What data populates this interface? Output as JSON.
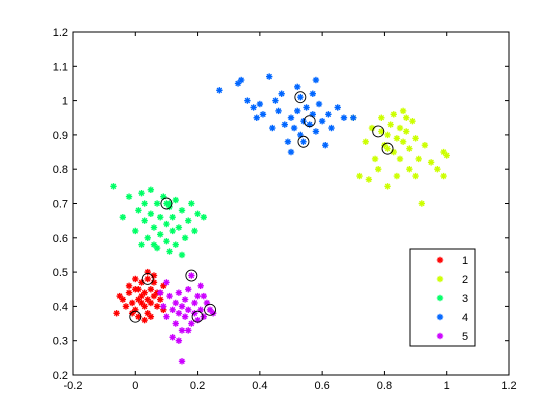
{
  "chart_data": {
    "type": "scatter",
    "title": "",
    "xlabel": "",
    "ylabel": "",
    "xlim": [
      -0.2,
      1.2
    ],
    "ylim": [
      0.2,
      1.2
    ],
    "xticks": [
      -0.2,
      0,
      0.2,
      0.4,
      0.6,
      0.8,
      1,
      1.2
    ],
    "xtick_labels": [
      "-0.2",
      "0",
      "0.2",
      "0.4",
      "0.6",
      "0.8",
      "1",
      "1.2"
    ],
    "yticks": [
      0.2,
      0.3,
      0.4,
      0.5,
      0.6,
      0.7,
      0.8,
      0.9,
      1,
      1.1,
      1.2
    ],
    "ytick_labels": [
      "0.2",
      "0.3",
      "0.4",
      "0.5",
      "0.6",
      "0.7",
      "0.8",
      "0.9",
      "1",
      "1.1",
      "1.2"
    ],
    "grid": false,
    "legend": {
      "placement": "bottom-right",
      "marker": "asterisk"
    },
    "series": [
      {
        "name": "1",
        "color": "#ff0000",
        "points": [
          [
            -0.06,
            0.38
          ],
          [
            -0.04,
            0.42
          ],
          [
            -0.03,
            0.4
          ],
          [
            -0.02,
            0.44
          ],
          [
            -0.01,
            0.41
          ],
          [
            0.0,
            0.39
          ],
          [
            0.0,
            0.45
          ],
          [
            0.01,
            0.42
          ],
          [
            0.01,
            0.37
          ],
          [
            0.02,
            0.43
          ],
          [
            0.02,
            0.47
          ],
          [
            0.03,
            0.4
          ],
          [
            0.03,
            0.44
          ],
          [
            0.04,
            0.42
          ],
          [
            0.04,
            0.38
          ],
          [
            0.05,
            0.45
          ],
          [
            0.05,
            0.41
          ],
          [
            0.06,
            0.43
          ],
          [
            0.06,
            0.47
          ],
          [
            0.07,
            0.4
          ],
          [
            0.07,
            0.44
          ],
          [
            0.08,
            0.42
          ],
          [
            0.09,
            0.46
          ],
          [
            -0.02,
            0.46
          ],
          [
            0.0,
            0.48
          ],
          [
            0.04,
            0.5
          ],
          [
            -0.05,
            0.43
          ],
          [
            0.09,
            0.39
          ],
          [
            0.03,
            0.36
          ],
          [
            0.06,
            0.49
          ],
          [
            0.01,
            0.45
          ],
          [
            0.08,
            0.44
          ],
          [
            -0.01,
            0.38
          ],
          [
            0.05,
            0.37
          ],
          [
            0.02,
            0.41
          ],
          [
            0.04,
            0.48
          ]
        ]
      },
      {
        "name": "2",
        "color": "#ccff00",
        "points": [
          [
            0.7,
            0.95
          ],
          [
            0.72,
            0.78
          ],
          [
            0.74,
            0.88
          ],
          [
            0.75,
            0.77
          ],
          [
            0.76,
            0.92
          ],
          [
            0.77,
            0.83
          ],
          [
            0.78,
            0.8
          ],
          [
            0.79,
            0.95
          ],
          [
            0.8,
            0.87
          ],
          [
            0.81,
            0.75
          ],
          [
            0.81,
            0.9
          ],
          [
            0.82,
            0.93
          ],
          [
            0.83,
            0.85
          ],
          [
            0.84,
            0.89
          ],
          [
            0.84,
            0.78
          ],
          [
            0.85,
            0.92
          ],
          [
            0.85,
            0.83
          ],
          [
            0.86,
            0.97
          ],
          [
            0.86,
            0.88
          ],
          [
            0.87,
            0.91
          ],
          [
            0.88,
            0.8
          ],
          [
            0.88,
            0.86
          ],
          [
            0.89,
            0.94
          ],
          [
            0.9,
            0.89
          ],
          [
            0.9,
            0.78
          ],
          [
            0.91,
            0.83
          ],
          [
            0.92,
            0.7
          ],
          [
            0.93,
            0.87
          ],
          [
            0.95,
            0.82
          ],
          [
            0.97,
            0.8
          ],
          [
            0.99,
            0.78
          ],
          [
            0.99,
            0.85
          ],
          [
            1.0,
            0.84
          ],
          [
            0.79,
            0.91
          ],
          [
            0.81,
            0.86
          ],
          [
            0.87,
            0.95
          ],
          [
            0.83,
            0.96
          ]
        ]
      },
      {
        "name": "3",
        "color": "#00ff66",
        "points": [
          [
            -0.07,
            0.75
          ],
          [
            -0.04,
            0.66
          ],
          [
            -0.02,
            0.72
          ],
          [
            0.0,
            0.62
          ],
          [
            0.01,
            0.68
          ],
          [
            0.02,
            0.58
          ],
          [
            0.03,
            0.7
          ],
          [
            0.03,
            0.65
          ],
          [
            0.04,
            0.6
          ],
          [
            0.05,
            0.74
          ],
          [
            0.05,
            0.67
          ],
          [
            0.06,
            0.63
          ],
          [
            0.07,
            0.7
          ],
          [
            0.07,
            0.57
          ],
          [
            0.08,
            0.66
          ],
          [
            0.08,
            0.61
          ],
          [
            0.09,
            0.72
          ],
          [
            0.1,
            0.64
          ],
          [
            0.1,
            0.59
          ],
          [
            0.11,
            0.69
          ],
          [
            0.11,
            0.56
          ],
          [
            0.12,
            0.66
          ],
          [
            0.12,
            0.62
          ],
          [
            0.13,
            0.71
          ],
          [
            0.14,
            0.63
          ],
          [
            0.15,
            0.68
          ],
          [
            0.16,
            0.6
          ],
          [
            0.17,
            0.65
          ],
          [
            0.18,
            0.7
          ],
          [
            0.19,
            0.62
          ],
          [
            0.2,
            0.67
          ],
          [
            0.22,
            0.66
          ],
          [
            0.15,
            0.55
          ],
          [
            0.1,
            0.7
          ],
          [
            0.11,
            0.7
          ],
          [
            0.06,
            0.58
          ],
          [
            0.02,
            0.73
          ],
          [
            0.13,
            0.58
          ]
        ]
      },
      {
        "name": "4",
        "color": "#0066ff",
        "points": [
          [
            0.27,
            1.03
          ],
          [
            0.33,
            1.05
          ],
          [
            0.34,
            1.06
          ],
          [
            0.36,
            1.0
          ],
          [
            0.38,
            0.98
          ],
          [
            0.39,
            0.95
          ],
          [
            0.4,
            0.99
          ],
          [
            0.41,
            0.96
          ],
          [
            0.43,
            1.07
          ],
          [
            0.45,
            1.0
          ],
          [
            0.46,
            0.97
          ],
          [
            0.47,
            1.02
          ],
          [
            0.48,
            0.93
          ],
          [
            0.49,
            0.88
          ],
          [
            0.5,
            0.95
          ],
          [
            0.5,
            0.85
          ],
          [
            0.51,
            0.92
          ],
          [
            0.52,
            0.97
          ],
          [
            0.53,
            1.01
          ],
          [
            0.53,
            0.9
          ],
          [
            0.54,
            0.94
          ],
          [
            0.54,
            0.88
          ],
          [
            0.55,
            0.98
          ],
          [
            0.56,
            0.93
          ],
          [
            0.57,
            1.02
          ],
          [
            0.57,
            0.96
          ],
          [
            0.58,
            0.91
          ],
          [
            0.59,
            0.99
          ],
          [
            0.6,
            0.94
          ],
          [
            0.61,
            0.87
          ],
          [
            0.62,
            0.96
          ],
          [
            0.63,
            0.92
          ],
          [
            0.65,
            0.98
          ],
          [
            0.67,
            0.95
          ],
          [
            0.7,
            0.95
          ],
          [
            0.52,
            1.04
          ],
          [
            0.44,
            0.92
          ],
          [
            0.58,
            1.06
          ]
        ]
      },
      {
        "name": "5",
        "color": "#cc00ff",
        "points": [
          [
            0.08,
            0.44
          ],
          [
            0.09,
            0.4
          ],
          [
            0.1,
            0.37
          ],
          [
            0.11,
            0.43
          ],
          [
            0.12,
            0.39
          ],
          [
            0.13,
            0.41
          ],
          [
            0.13,
            0.35
          ],
          [
            0.14,
            0.38
          ],
          [
            0.14,
            0.44
          ],
          [
            0.15,
            0.4
          ],
          [
            0.15,
            0.33
          ],
          [
            0.16,
            0.42
          ],
          [
            0.16,
            0.37
          ],
          [
            0.17,
            0.39
          ],
          [
            0.17,
            0.45
          ],
          [
            0.18,
            0.35
          ],
          [
            0.18,
            0.49
          ],
          [
            0.19,
            0.41
          ],
          [
            0.19,
            0.38
          ],
          [
            0.2,
            0.36
          ],
          [
            0.2,
            0.43
          ],
          [
            0.21,
            0.39
          ],
          [
            0.21,
            0.46
          ],
          [
            0.22,
            0.37
          ],
          [
            0.23,
            0.41
          ],
          [
            0.24,
            0.39
          ],
          [
            0.25,
            0.38
          ],
          [
            0.12,
            0.31
          ],
          [
            0.15,
            0.24
          ],
          [
            0.1,
            0.47
          ],
          [
            0.17,
            0.33
          ],
          [
            0.22,
            0.43
          ],
          [
            0.14,
            0.3
          ]
        ]
      }
    ],
    "highlighted_points": [
      [
        0.04,
        0.48
      ],
      [
        0.0,
        0.37
      ],
      [
        0.78,
        0.91
      ],
      [
        0.81,
        0.86
      ],
      [
        0.1,
        0.7
      ],
      [
        0.53,
        1.01
      ],
      [
        0.56,
        0.94
      ],
      [
        0.54,
        0.88
      ],
      [
        0.18,
        0.49
      ],
      [
        0.2,
        0.37
      ],
      [
        0.24,
        0.39
      ]
    ]
  }
}
